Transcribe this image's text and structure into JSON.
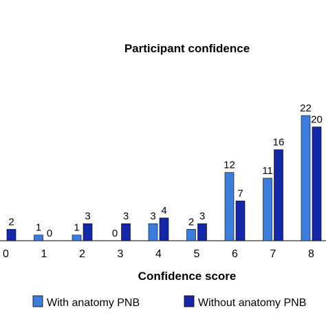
{
  "chart_data": {
    "type": "bar",
    "title": "Participant confidence",
    "xlabel": "Confidence score",
    "ylabel": "",
    "categories": [
      "0",
      "1",
      "2",
      "3",
      "4",
      "5",
      "6",
      "7",
      "8"
    ],
    "series": [
      {
        "name": "With anatomy PNB",
        "color": "#3b7ddd",
        "values": [
          null,
          1,
          1,
          0,
          3,
          2,
          12,
          11,
          22
        ]
      },
      {
        "name": "Without anatomy PNB",
        "color": "#1427a8",
        "values": [
          2,
          0,
          3,
          3,
          4,
          3,
          7,
          16,
          20
        ]
      }
    ],
    "ylim": [
      0,
      22
    ],
    "grid": false,
    "legend": "bottom"
  }
}
